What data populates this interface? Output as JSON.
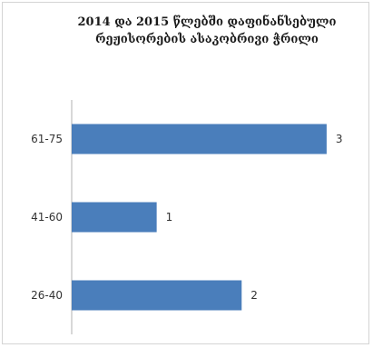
{
  "chart_data": {
    "type": "bar",
    "orientation": "horizontal",
    "title": "2014 და 2015 წლებში დაფინანსებული\nრეჟისორების ასაკობრივი ჭრილი",
    "categories": [
      "26-40",
      "41-60",
      "61-75"
    ],
    "values": [
      2,
      1,
      3
    ],
    "data_labels": [
      "2",
      "1",
      "3"
    ],
    "xlim": [
      0,
      3.3
    ],
    "grid": false,
    "legend": "none",
    "bar_color": "#4a7ebb"
  }
}
